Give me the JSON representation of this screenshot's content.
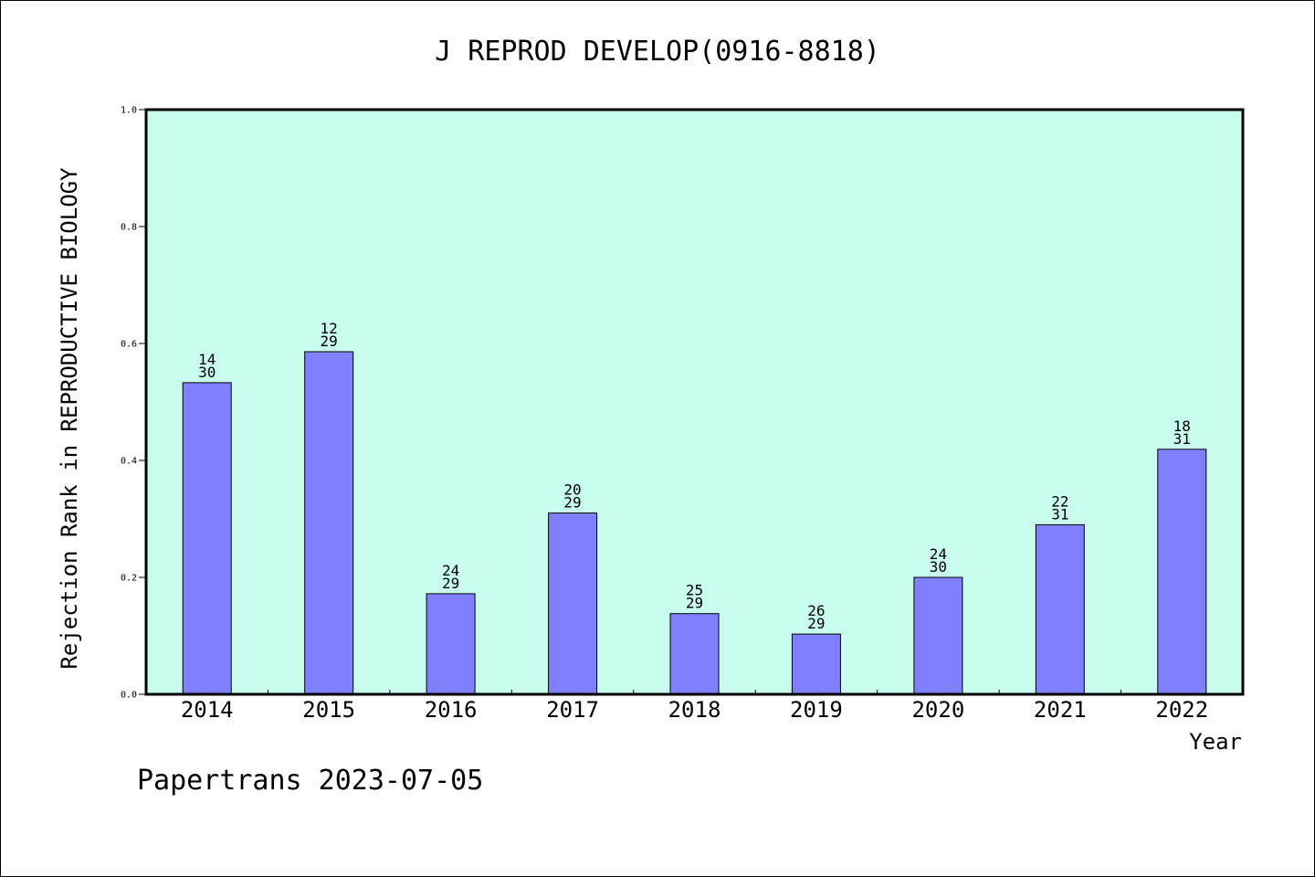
{
  "chart_data": {
    "type": "bar",
    "title": "J REPROD DEVELOP(0916-8818)",
    "xlabel": "Year",
    "ylabel": "Rejection Rank in REPRODUCTIVE BIOLOGY",
    "ylim": [
      0,
      1.0
    ],
    "yticks": [
      "0.0",
      "0.2",
      "0.4",
      "0.6",
      "0.8",
      "1.0"
    ],
    "grid": false,
    "colors": {
      "plot_bg": "#c8fcee",
      "bar": "#8080ff",
      "bar_stroke": "#000000"
    },
    "categories": [
      "2014",
      "2015",
      "2016",
      "2017",
      "2018",
      "2019",
      "2020",
      "2021",
      "2022"
    ],
    "values": [
      0.533,
      0.586,
      0.172,
      0.31,
      0.138,
      0.103,
      0.2,
      0.29,
      0.419
    ],
    "annotations": [
      {
        "rank": "14",
        "total": "30"
      },
      {
        "rank": "12",
        "total": "29"
      },
      {
        "rank": "24",
        "total": "29"
      },
      {
        "rank": "20",
        "total": "29"
      },
      {
        "rank": "25",
        "total": "29"
      },
      {
        "rank": "26",
        "total": "29"
      },
      {
        "rank": "24",
        "total": "30"
      },
      {
        "rank": "22",
        "total": "31"
      },
      {
        "rank": "18",
        "total": "31"
      }
    ]
  },
  "footer": {
    "credit": "Papertrans 2023-07-05"
  }
}
